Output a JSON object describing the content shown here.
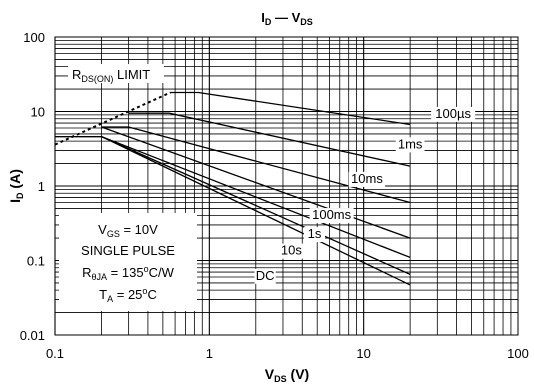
{
  "chart_data": {
    "type": "line",
    "title": {
      "main": "I",
      "sub": "D",
      "sep": " — ",
      "main2": "V",
      "sub2": "DS"
    },
    "xlabel": {
      "main": "V",
      "sub": "DS",
      "unit": " (V)"
    },
    "ylabel": {
      "main": "I",
      "sub": "D",
      "unit": " (A)"
    },
    "x_scale": "log",
    "y_scale": "log",
    "xlim": [
      0.1,
      100
    ],
    "ylim": [
      0.01,
      100
    ],
    "x_ticks": [
      {
        "value": 0.1,
        "label": "0.1"
      },
      {
        "value": 1,
        "label": "1"
      },
      {
        "value": 10,
        "label": "10"
      },
      {
        "value": 100,
        "label": "100"
      }
    ],
    "y_ticks": [
      {
        "value": 0.01,
        "label": "0.01"
      },
      {
        "value": 0.1,
        "label": "0.1"
      },
      {
        "value": 1,
        "label": "1"
      },
      {
        "value": 10,
        "label": "10"
      },
      {
        "value": 100,
        "label": "100"
      }
    ],
    "grid": true,
    "limit_line": {
      "label_main": "R",
      "label_sub": "DS(ON)",
      "label_rest": " LIMIT",
      "style": "dashed",
      "points": [
        [
          0.1,
          3.6
        ],
        [
          0.56,
          18
        ]
      ]
    },
    "series": [
      {
        "name": "100µs",
        "points": [
          [
            0.56,
            18
          ],
          [
            0.85,
            18
          ],
          [
            20,
            6.7
          ]
        ]
      },
      {
        "name": "1ms",
        "points": [
          [
            0.3,
            9.5
          ],
          [
            0.55,
            9.5
          ],
          [
            20,
            1.85
          ]
        ]
      },
      {
        "name": "10ms",
        "points": [
          [
            0.2,
            6.2
          ],
          [
            0.3,
            6.2
          ],
          [
            20,
            0.6
          ]
        ]
      },
      {
        "name": "100ms",
        "points": [
          [
            0.2,
            6.2
          ],
          [
            20,
            0.2
          ]
        ]
      },
      {
        "name": "1s",
        "points": [
          [
            0.1,
            4.6
          ],
          [
            0.2,
            4.6
          ],
          [
            20,
            0.11
          ]
        ]
      },
      {
        "name": "10s",
        "points": [
          [
            0.2,
            4.6
          ],
          [
            20,
            0.065
          ]
        ]
      },
      {
        "name": "DC",
        "points": [
          [
            0.1,
            4.6
          ],
          [
            0.2,
            4.6
          ],
          [
            20,
            0.047
          ]
        ]
      }
    ],
    "series_labels": [
      {
        "text": "100µs",
        "at": [
          38,
          8.2
        ]
      },
      {
        "text": "1ms",
        "at": [
          20,
          3.2
        ]
      },
      {
        "text": "10ms",
        "at": [
          10.5,
          1.1
        ]
      },
      {
        "text": "100ms",
        "at": [
          6.2,
          0.36
        ]
      },
      {
        "text": "1s",
        "at": [
          4.8,
          0.2
        ]
      },
      {
        "text": "10s",
        "at": [
          3.4,
          0.12
        ]
      },
      {
        "text": "DC",
        "at": [
          2.3,
          0.055
        ]
      }
    ],
    "conditions_box": {
      "lines": [
        {
          "main": "V",
          "sub": "GS",
          "rest": " = 10V"
        },
        {
          "main": "SINGLE PULSE",
          "sub": "",
          "rest": ""
        },
        {
          "main": "R",
          "sub": "θJA",
          "rest": " = 135",
          "sup": "o",
          "rest2": "C/W"
        },
        {
          "main": "T",
          "sub": "A",
          "rest": " = 25",
          "sup": "o",
          "rest2": "C"
        }
      ]
    }
  }
}
